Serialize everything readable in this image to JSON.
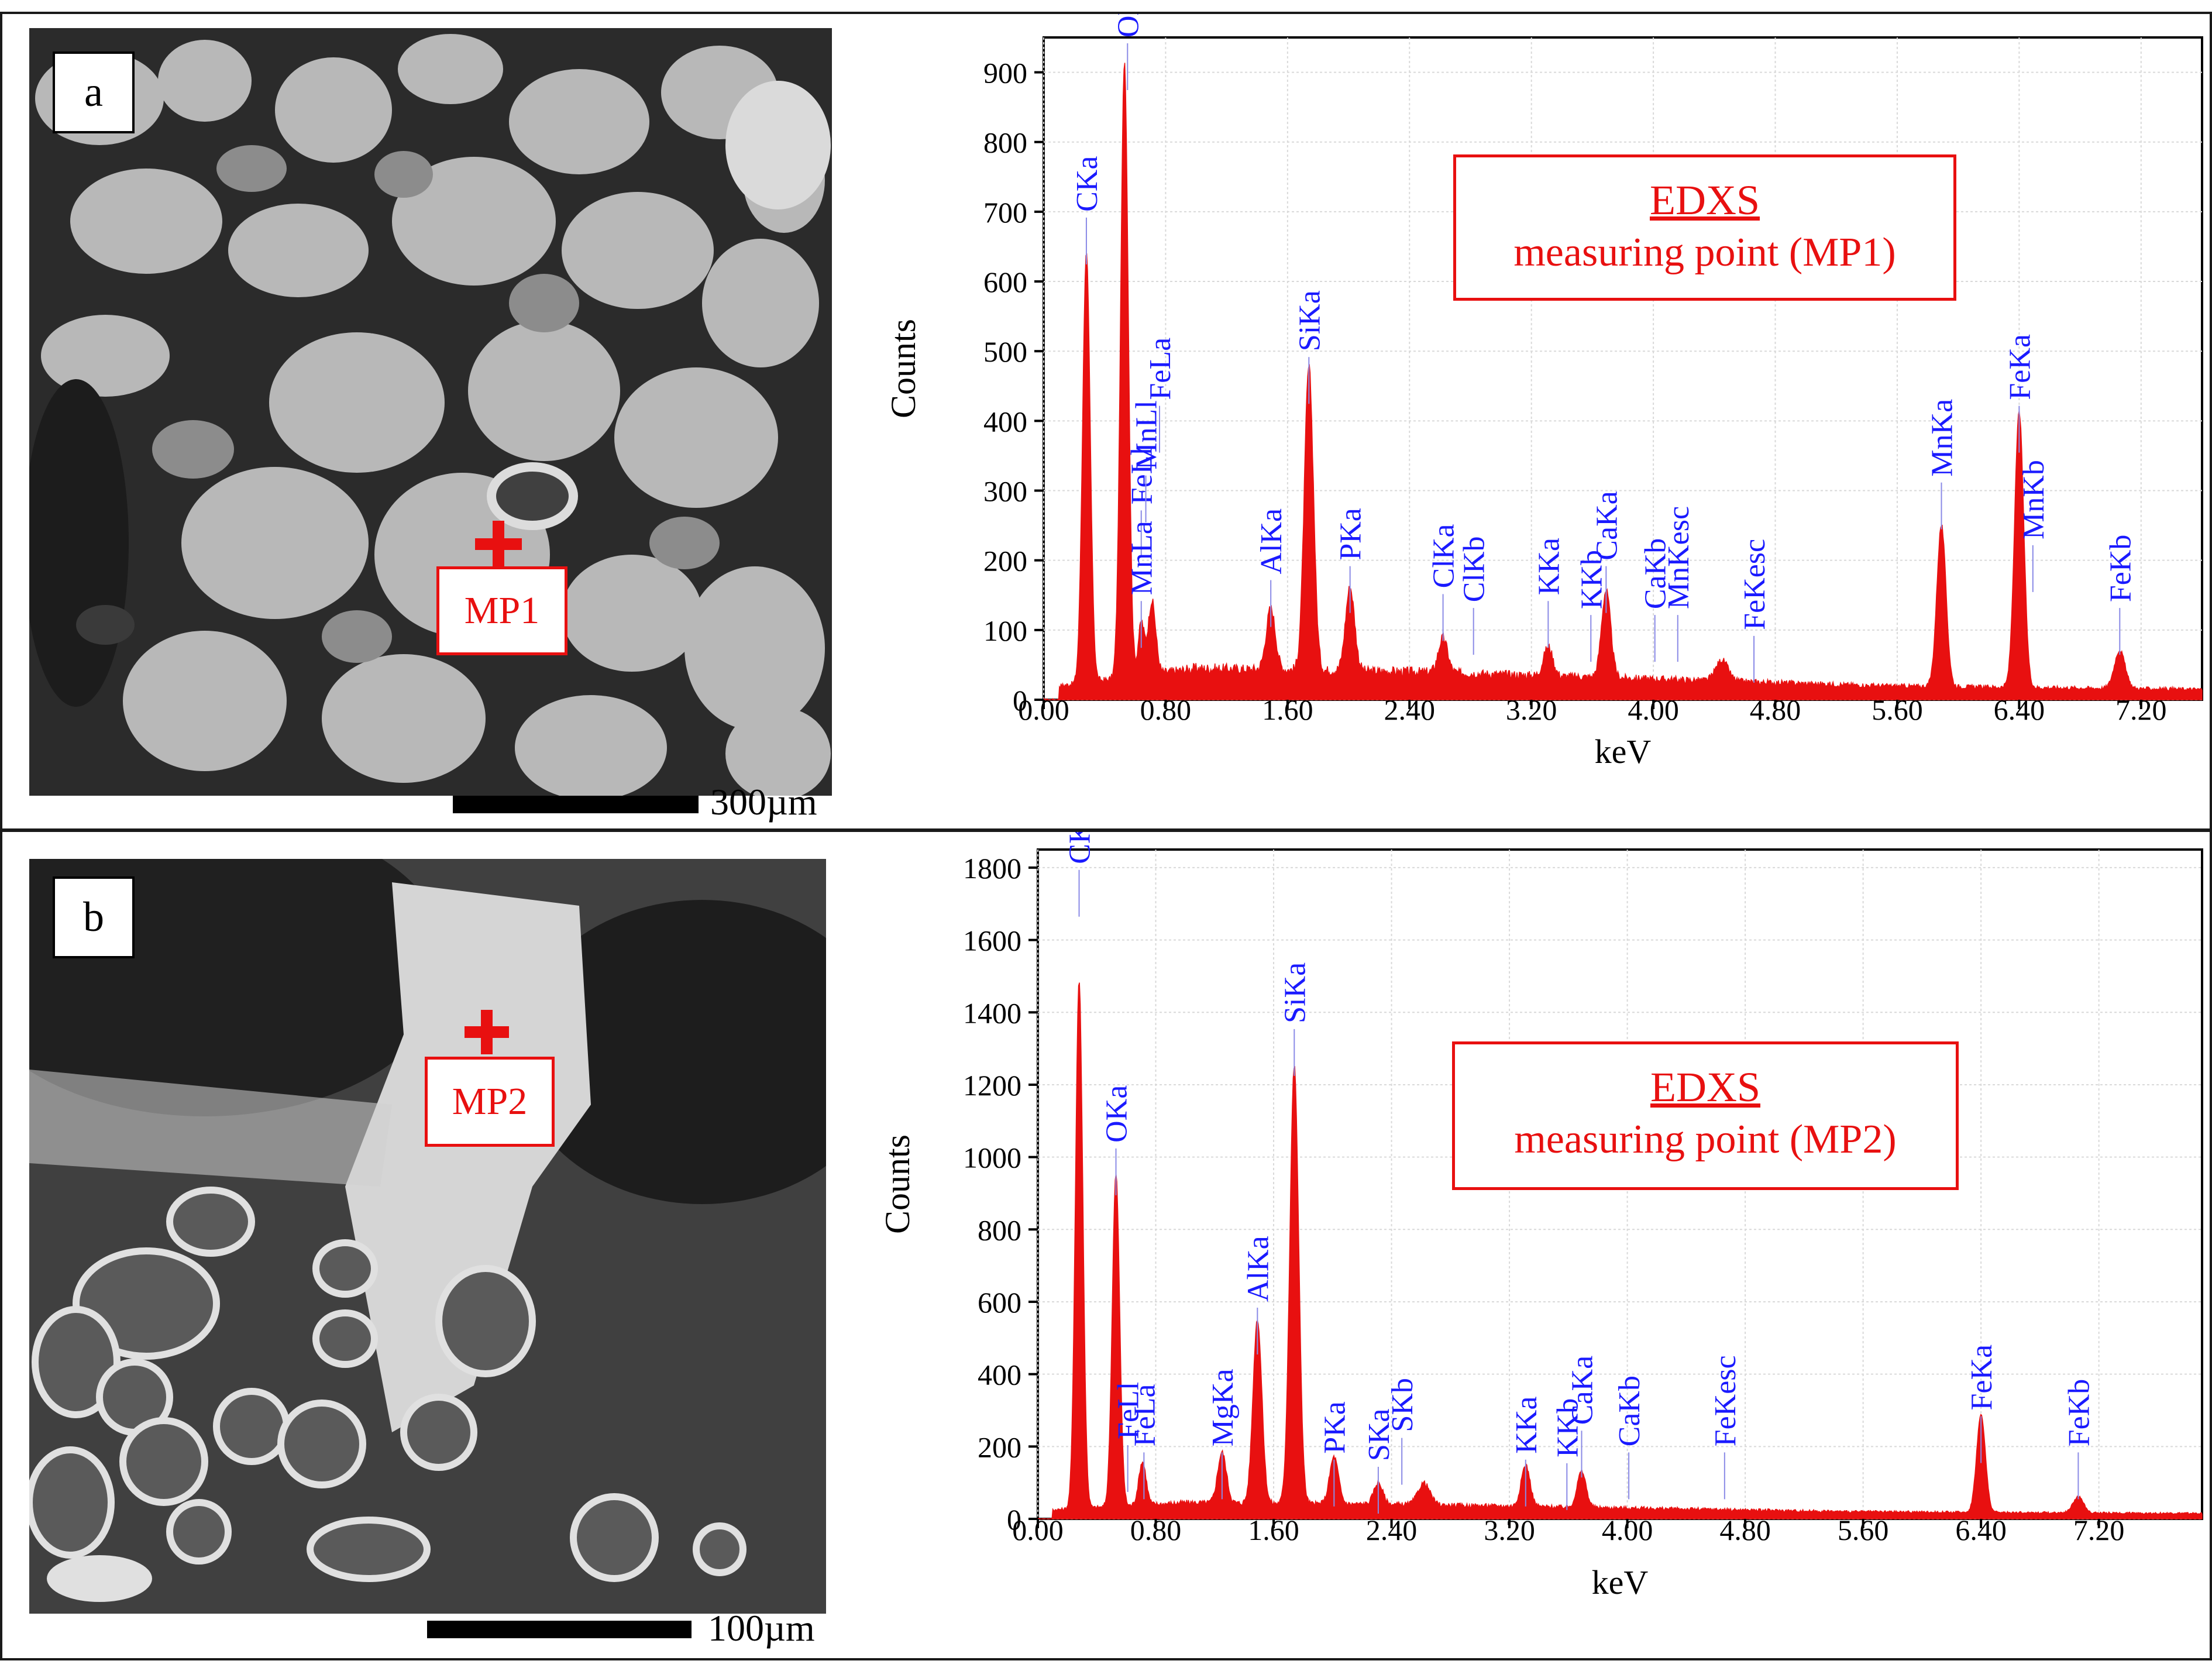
{
  "panels": [
    {
      "letter": "a",
      "marker": "MP1",
      "scale_label": "300µm",
      "legend_title": "EDXS",
      "legend_sub": "measuring point (MP1)"
    },
    {
      "letter": "b",
      "marker": "MP2",
      "scale_label": "100µm",
      "legend_title": "EDXS",
      "legend_sub": "measuring point (MP2)"
    }
  ],
  "colors": {
    "spectrum": "#e81010",
    "peak_label": "#1a1aff",
    "marker": "#e81010"
  },
  "chart_data": [
    {
      "type": "area",
      "xlabel": "keV",
      "ylabel": "Counts",
      "xlim": [
        0,
        7.6
      ],
      "ylim": [
        0,
        950
      ],
      "xticks": [
        0.0,
        0.8,
        1.6,
        2.4,
        3.2,
        4.0,
        4.8,
        5.6,
        6.4,
        7.2
      ],
      "xtick_labels": [
        "0.00",
        "0.80",
        "1.60",
        "2.40",
        "3.20",
        "4.00",
        "4.80",
        "5.60",
        "6.40",
        "7.20"
      ],
      "yticks": [
        0,
        100,
        200,
        300,
        400,
        500,
        600,
        700,
        800,
        900
      ],
      "peaks": [
        {
          "x": 0.28,
          "y": 615,
          "w": 0.05
        },
        {
          "x": 0.53,
          "y": 885,
          "w": 0.05
        },
        {
          "x": 0.64,
          "y": 75,
          "w": 0.04
        },
        {
          "x": 0.71,
          "y": 105,
          "w": 0.05
        },
        {
          "x": 1.49,
          "y": 88,
          "w": 0.06
        },
        {
          "x": 1.74,
          "y": 435,
          "w": 0.06
        },
        {
          "x": 2.01,
          "y": 120,
          "w": 0.06
        },
        {
          "x": 2.62,
          "y": 50,
          "w": 0.06
        },
        {
          "x": 3.31,
          "y": 42,
          "w": 0.06
        },
        {
          "x": 3.69,
          "y": 125,
          "w": 0.06
        },
        {
          "x": 4.45,
          "y": 30,
          "w": 0.08
        },
        {
          "x": 5.89,
          "y": 232,
          "w": 0.06
        },
        {
          "x": 6.4,
          "y": 395,
          "w": 0.06
        },
        {
          "x": 7.06,
          "y": 55,
          "w": 0.07
        }
      ],
      "background": [
        [
          0.1,
          20
        ],
        [
          1.0,
          45
        ],
        [
          2.5,
          40
        ],
        [
          4.0,
          30
        ],
        [
          5.5,
          20
        ],
        [
          7.6,
          15
        ]
      ],
      "peak_labels": [
        {
          "text": "CKa",
          "x": 0.28,
          "y_top": 700
        },
        {
          "text": "OKa",
          "x": 0.55,
          "y_top": 950
        },
        {
          "text": "FeLl",
          "x": 0.64,
          "y_top": 280
        },
        {
          "text": "MnLl",
          "x": 0.67,
          "y_top": 330
        },
        {
          "text": "MnLa",
          "x": 0.64,
          "y_top": 150
        },
        {
          "text": "FeLa",
          "x": 0.76,
          "y_top": 430
        },
        {
          "text": "AlKa",
          "x": 1.49,
          "y_top": 180
        },
        {
          "text": "SiKa",
          "x": 1.74,
          "y_top": 500
        },
        {
          "text": "PKa",
          "x": 2.01,
          "y_top": 200
        },
        {
          "text": "ClKa",
          "x": 2.62,
          "y_top": 160
        },
        {
          "text": "ClKb",
          "x": 2.82,
          "y_top": 140
        },
        {
          "text": "KKa",
          "x": 3.31,
          "y_top": 150
        },
        {
          "text": "KKb",
          "x": 3.59,
          "y_top": 130
        },
        {
          "text": "CaKa",
          "x": 3.69,
          "y_top": 200
        },
        {
          "text": "CaKb",
          "x": 4.01,
          "y_top": 130
        },
        {
          "text": "MnKesc",
          "x": 4.16,
          "y_top": 130
        },
        {
          "text": "FeKesc",
          "x": 4.66,
          "y_top": 100
        },
        {
          "text": "MnKa",
          "x": 5.89,
          "y_top": 320
        },
        {
          "text": "FeKa",
          "x": 6.4,
          "y_top": 430
        },
        {
          "text": "MnKb",
          "x": 6.49,
          "y_top": 230
        },
        {
          "text": "FeKb",
          "x": 7.06,
          "y_top": 140
        }
      ]
    },
    {
      "type": "area",
      "xlabel": "keV",
      "ylabel": "Counts",
      "xlim": [
        0,
        7.9
      ],
      "ylim": [
        0,
        1850
      ],
      "xticks": [
        0.0,
        0.8,
        1.6,
        2.4,
        3.2,
        4.0,
        4.8,
        5.6,
        6.4,
        7.2
      ],
      "xtick_labels": [
        "0.00",
        "0.80",
        "1.60",
        "2.40",
        "3.20",
        "4.00",
        "4.80",
        "5.60",
        "6.40",
        "7.20"
      ],
      "yticks": [
        0,
        200,
        400,
        600,
        800,
        1000,
        1200,
        1400,
        1600,
        1800
      ],
      "peaks": [
        {
          "x": 0.28,
          "y": 1460,
          "w": 0.05
        },
        {
          "x": 0.53,
          "y": 920,
          "w": 0.05
        },
        {
          "x": 0.71,
          "y": 120,
          "w": 0.05
        },
        {
          "x": 1.25,
          "y": 140,
          "w": 0.06
        },
        {
          "x": 1.49,
          "y": 510,
          "w": 0.06
        },
        {
          "x": 1.74,
          "y": 1210,
          "w": 0.06
        },
        {
          "x": 2.01,
          "y": 130,
          "w": 0.06
        },
        {
          "x": 2.31,
          "y": 60,
          "w": 0.06
        },
        {
          "x": 2.62,
          "y": 60,
          "w": 0.08
        },
        {
          "x": 3.31,
          "y": 115,
          "w": 0.06
        },
        {
          "x": 3.69,
          "y": 100,
          "w": 0.06
        },
        {
          "x": 6.4,
          "y": 270,
          "w": 0.06
        },
        {
          "x": 7.06,
          "y": 45,
          "w": 0.07
        }
      ],
      "background": [
        [
          0.1,
          25
        ],
        [
          1.0,
          45
        ],
        [
          2.5,
          40
        ],
        [
          4.0,
          30
        ],
        [
          5.5,
          20
        ],
        [
          7.9,
          15
        ]
      ],
      "peak_labels": [
        {
          "text": "CKa",
          "x": 0.28,
          "y_top": 1810
        },
        {
          "text": "OKa",
          "x": 0.53,
          "y_top": 1040
        },
        {
          "text": "FeLl",
          "x": 0.61,
          "y_top": 220
        },
        {
          "text": "FeLa",
          "x": 0.72,
          "y_top": 200
        },
        {
          "text": "MgKa",
          "x": 1.25,
          "y_top": 200
        },
        {
          "text": "AlKa",
          "x": 1.49,
          "y_top": 600
        },
        {
          "text": "SiKa",
          "x": 1.74,
          "y_top": 1370
        },
        {
          "text": "PKa",
          "x": 2.01,
          "y_top": 180
        },
        {
          "text": "SKa",
          "x": 2.31,
          "y_top": 160
        },
        {
          "text": "SKb",
          "x": 2.47,
          "y_top": 240
        },
        {
          "text": "KKa",
          "x": 3.31,
          "y_top": 180
        },
        {
          "text": "KKb",
          "x": 3.59,
          "y_top": 170
        },
        {
          "text": "CaKa",
          "x": 3.69,
          "y_top": 260
        },
        {
          "text": "CaKb",
          "x": 4.01,
          "y_top": 200
        },
        {
          "text": "FeKesc",
          "x": 4.66,
          "y_top": 200
        },
        {
          "text": "FeKa",
          "x": 6.4,
          "y_top": 300
        },
        {
          "text": "FeKb",
          "x": 7.06,
          "y_top": 200
        }
      ]
    }
  ]
}
